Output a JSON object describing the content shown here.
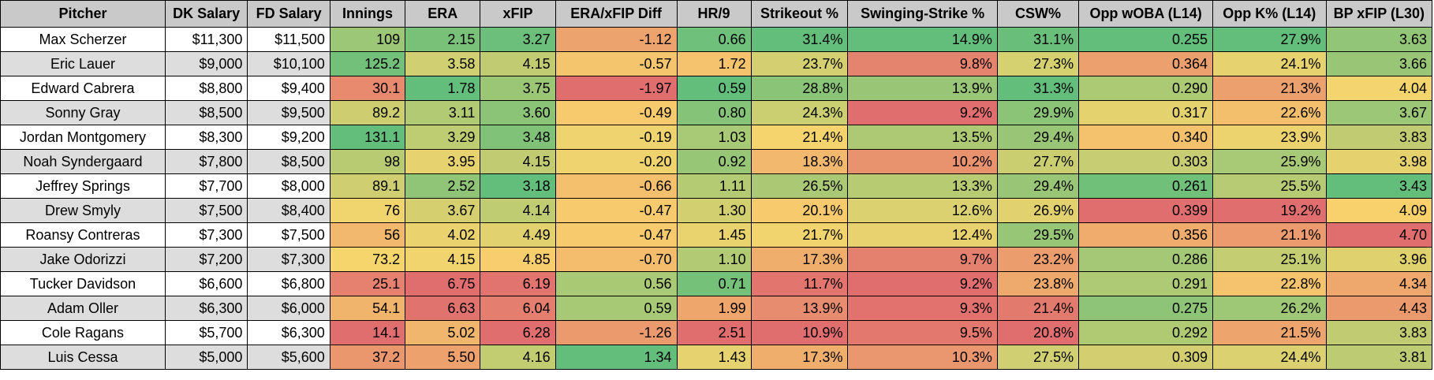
{
  "columns": [
    "Pitcher",
    "DK Salary",
    "FD Salary",
    "Innings",
    "ERA",
    "xFIP",
    "ERA/xFIP Diff",
    "HR/9",
    "Strikeout %",
    "Swinging-Strike %",
    "CSW%",
    "Opp wOBA (L14)",
    "Opp K% (L14)",
    "BP xFIP (L30)"
  ],
  "rows": [
    [
      "Max Scherzer",
      "$11,300",
      "$11,500",
      "109",
      "2.15",
      "3.27",
      "-1.12",
      "0.66",
      "31.4%",
      "14.9%",
      "31.1%",
      "0.255",
      "27.9%",
      "3.63"
    ],
    [
      "Eric Lauer",
      "$9,000",
      "$10,100",
      "125.2",
      "3.58",
      "4.15",
      "-0.57",
      "1.72",
      "23.7%",
      "9.8%",
      "27.3%",
      "0.364",
      "24.1%",
      "3.66"
    ],
    [
      "Edward Cabrera",
      "$8,800",
      "$9,400",
      "30.1",
      "1.78",
      "3.75",
      "-1.97",
      "0.59",
      "28.8%",
      "13.9%",
      "31.3%",
      "0.290",
      "21.3%",
      "4.04"
    ],
    [
      "Sonny Gray",
      "$8,500",
      "$9,500",
      "89.2",
      "3.11",
      "3.60",
      "-0.49",
      "0.80",
      "24.3%",
      "9.2%",
      "29.9%",
      "0.317",
      "22.6%",
      "3.67"
    ],
    [
      "Jordan Montgomery",
      "$8,300",
      "$9,200",
      "131.1",
      "3.29",
      "3.48",
      "-0.19",
      "1.03",
      "21.4%",
      "13.5%",
      "29.4%",
      "0.340",
      "23.9%",
      "3.83"
    ],
    [
      "Noah Syndergaard",
      "$7,800",
      "$8,500",
      "98",
      "3.95",
      "4.15",
      "-0.20",
      "0.92",
      "18.3%",
      "10.2%",
      "27.7%",
      "0.303",
      "25.9%",
      "3.98"
    ],
    [
      "Jeffrey Springs",
      "$7,700",
      "$8,000",
      "89.1",
      "2.52",
      "3.18",
      "-0.66",
      "1.11",
      "26.5%",
      "13.3%",
      "29.4%",
      "0.261",
      "25.5%",
      "3.43"
    ],
    [
      "Drew Smyly",
      "$7,500",
      "$8,400",
      "76",
      "3.67",
      "4.14",
      "-0.47",
      "1.30",
      "20.1%",
      "12.6%",
      "26.9%",
      "0.399",
      "19.2%",
      "4.09"
    ],
    [
      "Roansy Contreras",
      "$7,300",
      "$7,500",
      "56",
      "4.02",
      "4.49",
      "-0.47",
      "1.45",
      "21.7%",
      "12.4%",
      "29.5%",
      "0.356",
      "21.1%",
      "4.70"
    ],
    [
      "Jake Odorizzi",
      "$7,200",
      "$7,300",
      "73.2",
      "4.15",
      "4.85",
      "-0.70",
      "1.10",
      "17.3%",
      "9.7%",
      "23.2%",
      "0.286",
      "25.1%",
      "3.96"
    ],
    [
      "Tucker Davidson",
      "$6,600",
      "$6,800",
      "25.1",
      "6.75",
      "6.19",
      "0.56",
      "0.71",
      "11.7%",
      "9.2%",
      "23.8%",
      "0.291",
      "22.8%",
      "4.34"
    ],
    [
      "Adam Oller",
      "$6,300",
      "$6,000",
      "54.1",
      "6.63",
      "6.04",
      "0.59",
      "1.99",
      "13.9%",
      "9.3%",
      "21.4%",
      "0.275",
      "26.2%",
      "4.43"
    ],
    [
      "Cole Ragans",
      "$5,700",
      "$6,300",
      "14.1",
      "5.02",
      "6.28",
      "-1.26",
      "2.51",
      "10.9%",
      "9.5%",
      "20.8%",
      "0.292",
      "21.5%",
      "3.83"
    ],
    [
      "Luis Cessa",
      "$5,000",
      "$5,600",
      "37.2",
      "5.50",
      "4.16",
      "1.34",
      "1.43",
      "17.3%",
      "10.3%",
      "27.5%",
      "0.309",
      "24.4%",
      "3.81"
    ]
  ],
  "colors": {
    "green": "#63be7b",
    "yellow": "#f9d56d",
    "red": "#e06e6e",
    "header_bg": "#c9c9c9",
    "stripe": "#dddddd"
  }
}
